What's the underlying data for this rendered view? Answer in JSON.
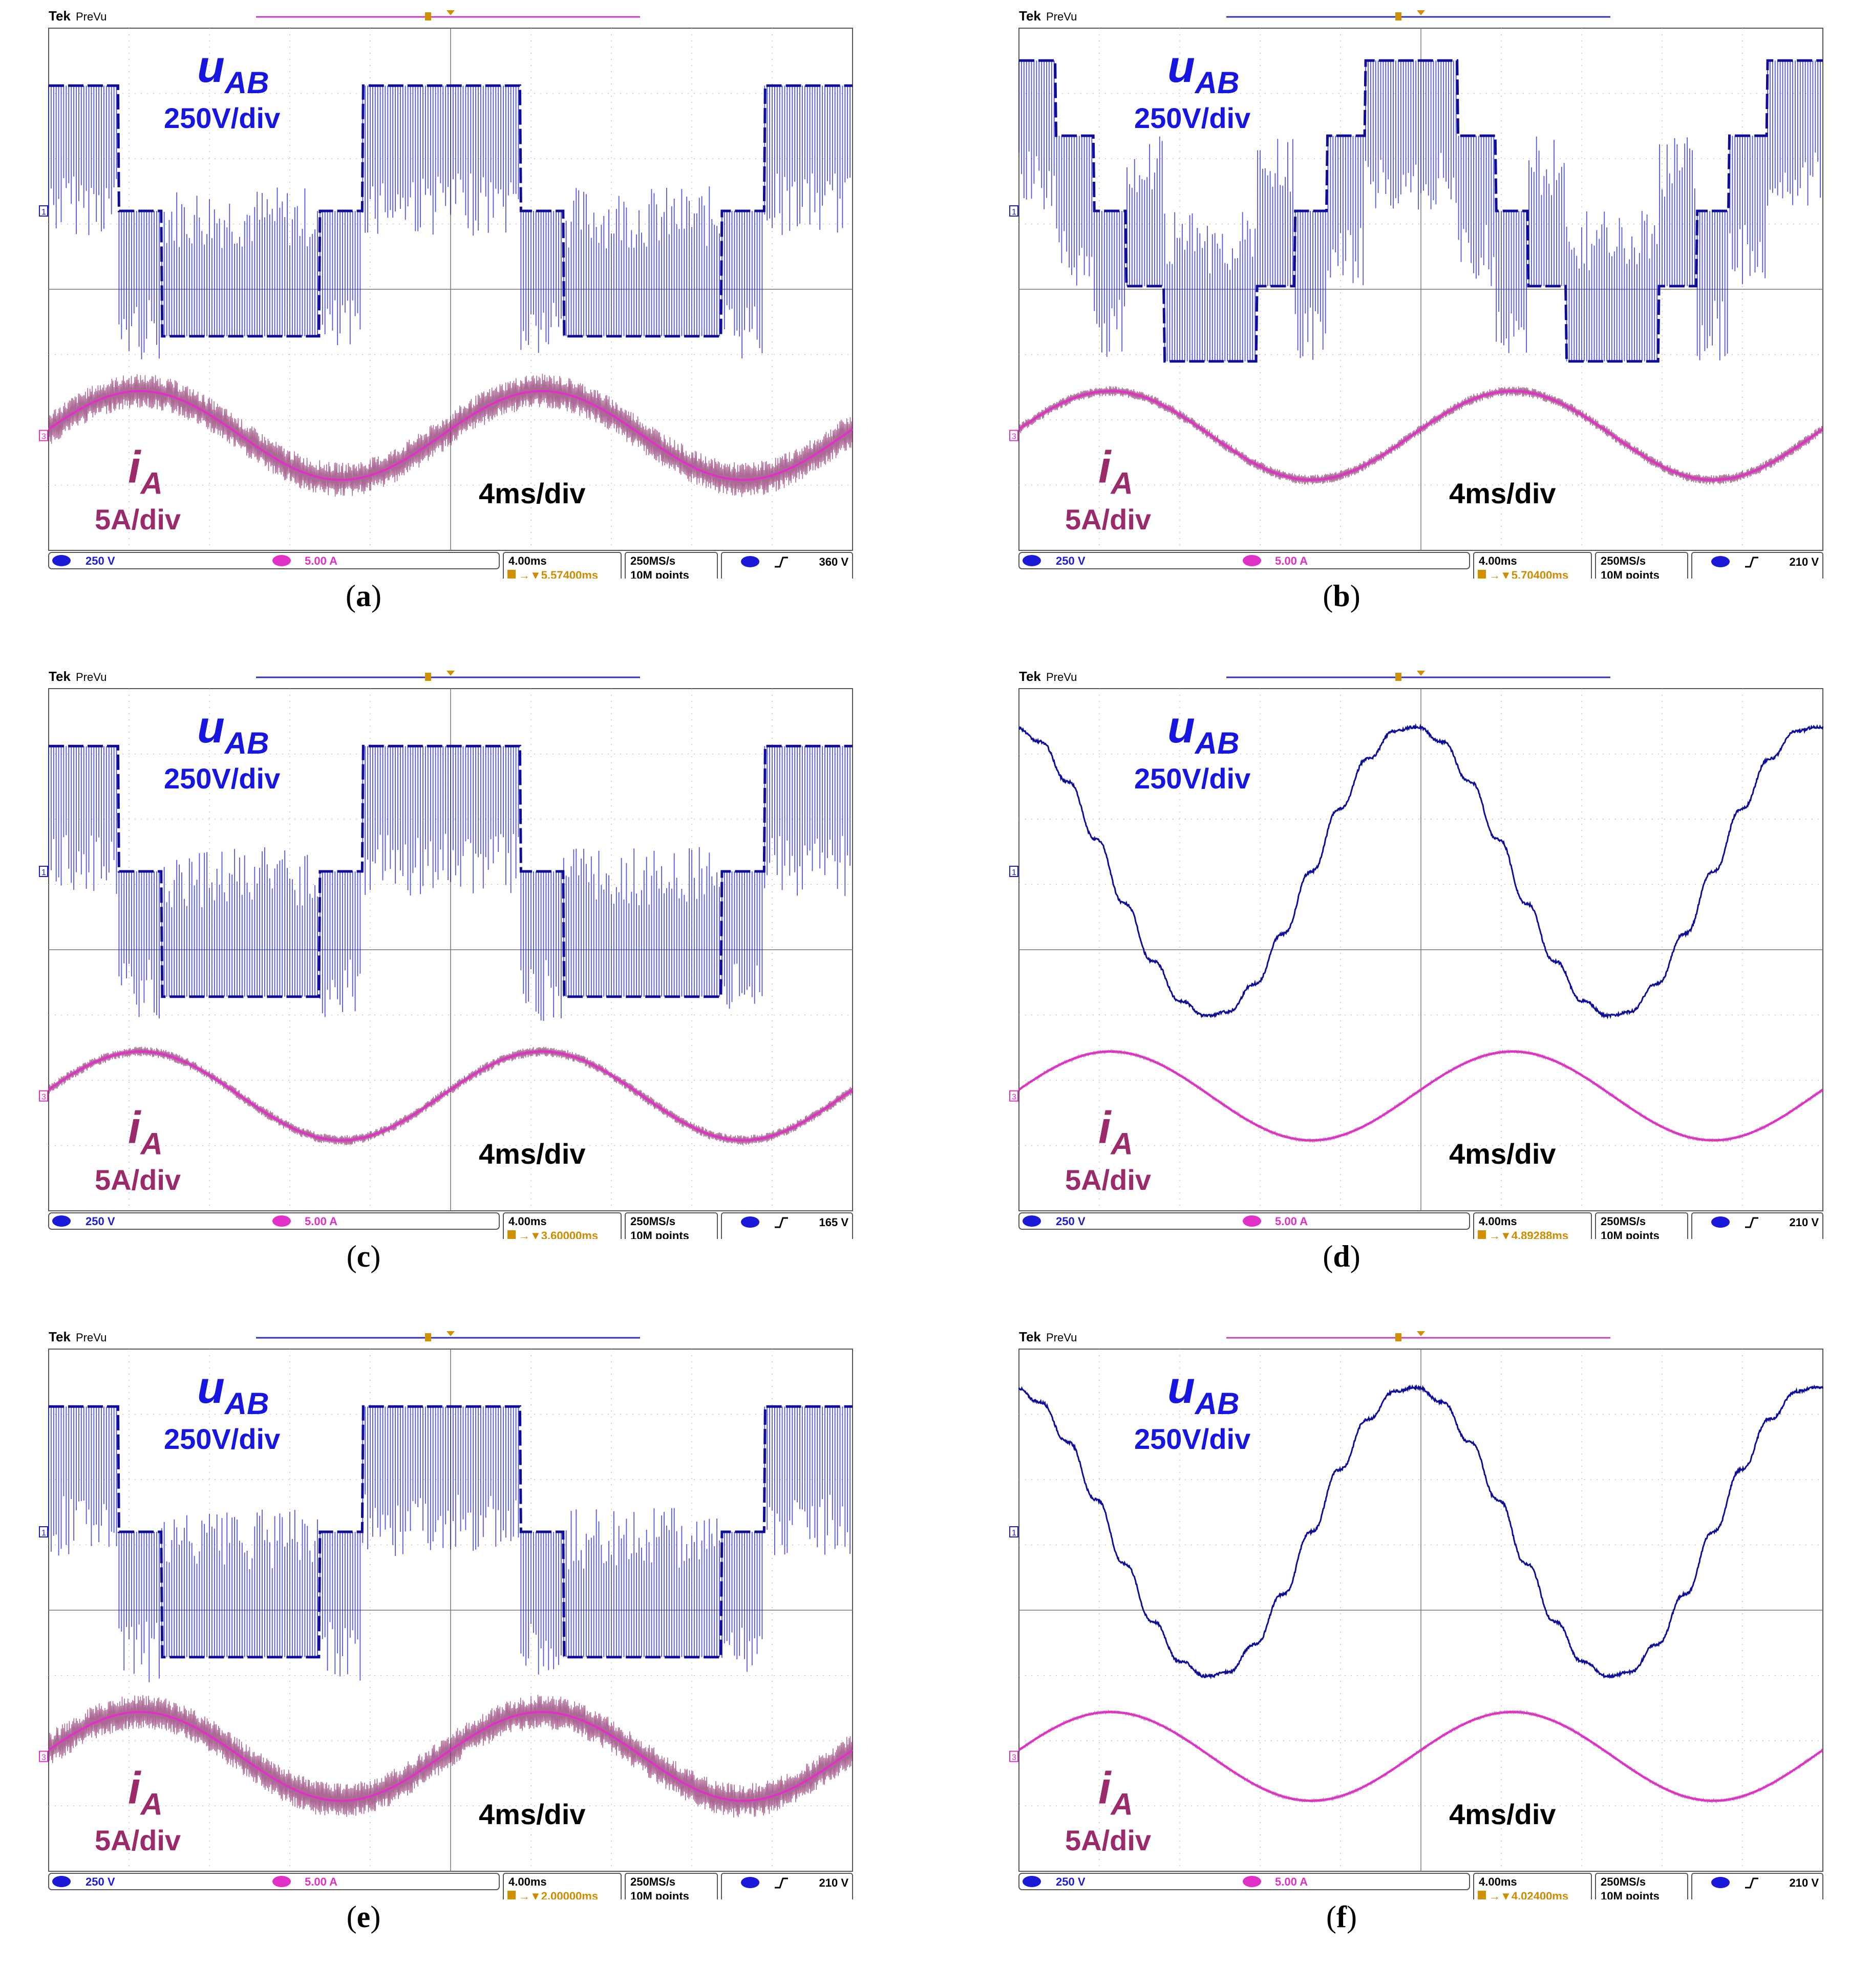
{
  "common": {
    "brand": "Tek",
    "mode": "PreVu",
    "ch1_marker": "1",
    "ch3_marker": "3",
    "trigger_marker": "T",
    "ch1_label_main": "u",
    "ch1_label_sub": "AB",
    "ch1_scale": "250V/div",
    "ch3_label_main": "i",
    "ch3_label_sub": "A",
    "ch3_scale": "5A/div",
    "time_scale": "4ms/div",
    "ch1_readout": "250 V",
    "ch3_readout": "5.00 A",
    "horizontal": "4.00ms",
    "sample_rate": "250MS/s",
    "record_length": "10M points",
    "trigger_slope_icon": "rising-edge-icon"
  },
  "colors": {
    "ch1": "#1a1ad8",
    "ch1_dark": "#0d0d9a",
    "ch3": "#e030c8",
    "ch3_dark": "#8a2a6a",
    "label_blue": "#1616e0",
    "label_magenta": "#9a2a6a",
    "grid": "#b8b8b8",
    "delay_text": "#d08a00",
    "trigger_marker": "#d09000"
  },
  "panels": [
    {
      "id": "a",
      "caption": "a",
      "delay": "5.57400ms",
      "trigger_level": "360 V",
      "voltage_type": "pwm-3level",
      "current_type": "ripple-heavy",
      "top_bar_color": "#c040c0"
    },
    {
      "id": "b",
      "caption": "b",
      "delay": "5.70400ms",
      "trigger_level": "210 V",
      "voltage_type": "pwm-multilevel",
      "current_type": "ripple-light",
      "top_bar_color": "#3030c0"
    },
    {
      "id": "c",
      "caption": "c",
      "delay": "3.60000ms",
      "trigger_level": "165 V",
      "voltage_type": "pwm-3level",
      "current_type": "ripple-light",
      "top_bar_color": "#3030c0"
    },
    {
      "id": "d",
      "caption": "d",
      "delay": "4.89288ms",
      "trigger_level": "210 V",
      "voltage_type": "sine-smooth",
      "current_type": "smooth",
      "top_bar_color": "#3030c0"
    },
    {
      "id": "e",
      "caption": "e",
      "delay": "2.00000ms",
      "trigger_level": "210 V",
      "voltage_type": "pwm-3level",
      "current_type": "ripple-heavy",
      "top_bar_color": "#3030c0"
    },
    {
      "id": "f",
      "caption": "f",
      "delay": "4.02400ms",
      "trigger_level": "210 V",
      "voltage_type": "sine-smooth",
      "current_type": "smooth",
      "top_bar_color": "#c040c0"
    }
  ],
  "chart_data": [
    {
      "type": "line",
      "title": "(a)",
      "time_per_div_ms": 4,
      "x_divisions": 10,
      "ylabel": "u_AB (250V/div), i_A (5A/div)",
      "series": [
        {
          "name": "u_AB",
          "scale": "250V/div",
          "waveform": "three-level PWM, 2 fundamental cycles"
        },
        {
          "name": "i_A",
          "scale": "5A/div",
          "waveform": "sinusoid with heavy ripple"
        }
      ]
    },
    {
      "type": "line",
      "title": "(b)",
      "time_per_div_ms": 4,
      "x_divisions": 10,
      "ylabel": "u_AB (250V/div), i_A (5A/div)",
      "series": [
        {
          "name": "u_AB",
          "scale": "250V/div",
          "waveform": "multilevel PWM staircase"
        },
        {
          "name": "i_A",
          "scale": "5A/div",
          "waveform": "sinusoid with light ripple"
        }
      ]
    },
    {
      "type": "line",
      "title": "(c)",
      "time_per_div_ms": 4,
      "x_divisions": 10,
      "ylabel": "u_AB (250V/div), i_A (5A/div)",
      "series": [
        {
          "name": "u_AB",
          "scale": "250V/div",
          "waveform": "three-level PWM"
        },
        {
          "name": "i_A",
          "scale": "5A/div",
          "waveform": "sinusoid with light ripple"
        }
      ]
    },
    {
      "type": "line",
      "title": "(d)",
      "time_per_div_ms": 4,
      "x_divisions": 10,
      "ylabel": "u_AB (250V/div), i_A (5A/div)",
      "series": [
        {
          "name": "u_AB",
          "scale": "250V/div",
          "waveform": "filtered sinusoid"
        },
        {
          "name": "i_A",
          "scale": "5A/div",
          "waveform": "smooth sinusoid"
        }
      ]
    },
    {
      "type": "line",
      "title": "(e)",
      "time_per_div_ms": 4,
      "x_divisions": 10,
      "ylabel": "u_AB (250V/div), i_A (5A/div)",
      "series": [
        {
          "name": "u_AB",
          "scale": "250V/div",
          "waveform": "three-level PWM"
        },
        {
          "name": "i_A",
          "scale": "5A/div",
          "waveform": "sinusoid with heavy ripple"
        }
      ]
    },
    {
      "type": "line",
      "title": "(f)",
      "time_per_div_ms": 4,
      "x_divisions": 10,
      "ylabel": "u_AB (250V/div), i_A (5A/div)",
      "series": [
        {
          "name": "u_AB",
          "scale": "250V/div",
          "waveform": "filtered sinusoid"
        },
        {
          "name": "i_A",
          "scale": "5A/div",
          "waveform": "smooth sinusoid"
        }
      ]
    }
  ]
}
